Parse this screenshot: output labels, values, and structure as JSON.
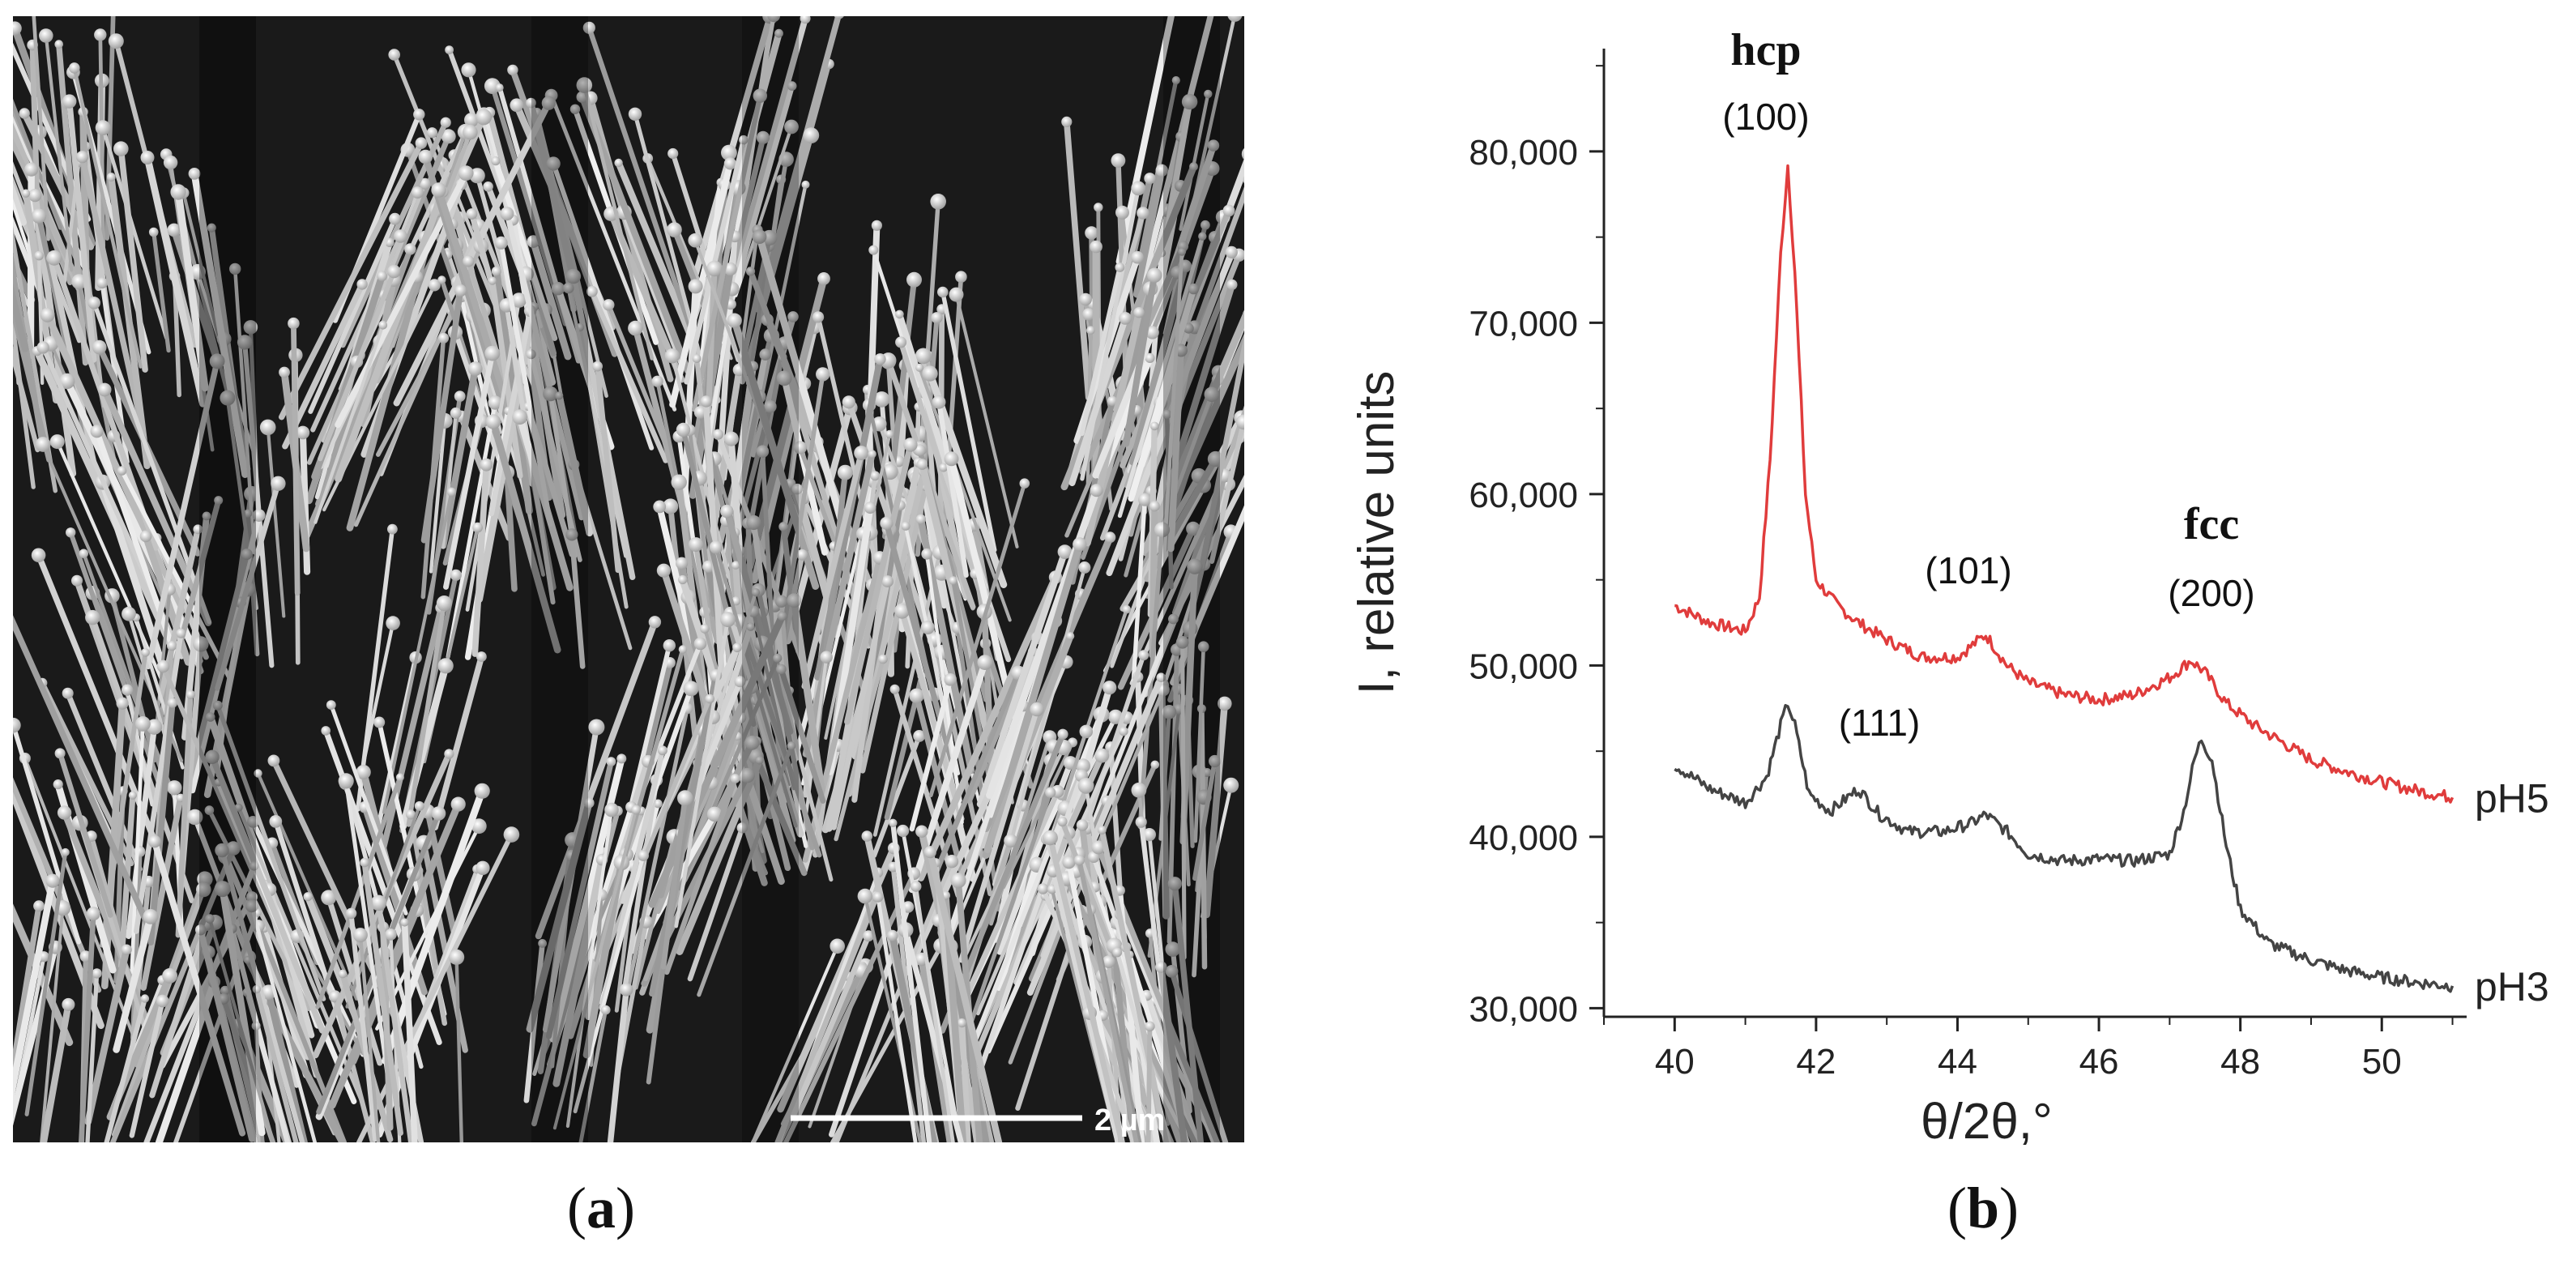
{
  "panels": {
    "a": {
      "label": "a",
      "scale_bar_label": "2 µm"
    },
    "b": {
      "label": "b"
    }
  },
  "colors": {
    "ph5_series": "#e03c3c",
    "ph3_series": "#444444",
    "axis": "#222222",
    "sem_background": "#1a1a1a",
    "sem_fiber": "#d8d8d8"
  },
  "chart_data": {
    "type": "line",
    "title": "",
    "xlabel": "θ/2θ,°",
    "ylabel": "I, relative units",
    "xlim": [
      39,
      51.2
    ],
    "ylim": [
      29500,
      86000
    ],
    "x_ticks": [
      40,
      42,
      44,
      46,
      48,
      50
    ],
    "x_tick_labels": [
      "40",
      "42",
      "44",
      "46",
      "48",
      "50"
    ],
    "y_ticks": [
      30000,
      40000,
      50000,
      60000,
      70000,
      80000
    ],
    "y_tick_labels": [
      "30,000",
      "40,000",
      "50,000",
      "60,000",
      "70,000",
      "80,000"
    ],
    "legend": "series labels at right end of each curve",
    "series": [
      {
        "name": "pH5",
        "color": "#e03c3c",
        "x": [
          40.0,
          40.5,
          41.0,
          41.2,
          41.35,
          41.5,
          41.6,
          41.7,
          41.85,
          42.0,
          42.3,
          42.6,
          43.0,
          43.5,
          44.0,
          44.4,
          44.7,
          45.0,
          45.5,
          46.0,
          46.5,
          47.0,
          47.3,
          47.5,
          47.8,
          48.2,
          48.6,
          49.0,
          49.5,
          50.0,
          50.5,
          51.0
        ],
        "values": [
          53500,
          52500,
          52000,
          54000,
          62000,
          74000,
          79200,
          73000,
          60000,
          55000,
          53500,
          52500,
          51500,
          50500,
          50500,
          51800,
          50000,
          49000,
          48300,
          48000,
          48300,
          49300,
          50300,
          49600,
          47800,
          46500,
          45500,
          44500,
          43800,
          43200,
          42700,
          42300
        ]
      },
      {
        "name": "pH3",
        "color": "#444444",
        "x": [
          40.0,
          40.5,
          41.0,
          41.3,
          41.5,
          41.6,
          41.7,
          41.9,
          42.2,
          42.6,
          42.9,
          43.3,
          43.8,
          44.2,
          44.4,
          44.7,
          45.0,
          45.5,
          46.0,
          46.5,
          47.0,
          47.2,
          47.35,
          47.45,
          47.6,
          47.8,
          48.0,
          48.4,
          49.0,
          49.5,
          50.0,
          50.5,
          51.0
        ],
        "values": [
          44200,
          42800,
          42000,
          43500,
          46500,
          47800,
          46500,
          42500,
          41500,
          42800,
          41300,
          40300,
          40300,
          40800,
          41300,
          40300,
          39000,
          38600,
          38700,
          38600,
          39000,
          41500,
          44500,
          45700,
          44500,
          39500,
          35800,
          33800,
          32800,
          32200,
          31800,
          31500,
          31300
        ]
      }
    ],
    "annotations": [
      {
        "text": "hcp",
        "style": "serif-bold"
      },
      {
        "text": "(100)"
      },
      {
        "text": "(101)"
      },
      {
        "text": "fcc",
        "style": "serif-bold"
      },
      {
        "text": "(200)"
      },
      {
        "text": "(111)"
      }
    ]
  }
}
